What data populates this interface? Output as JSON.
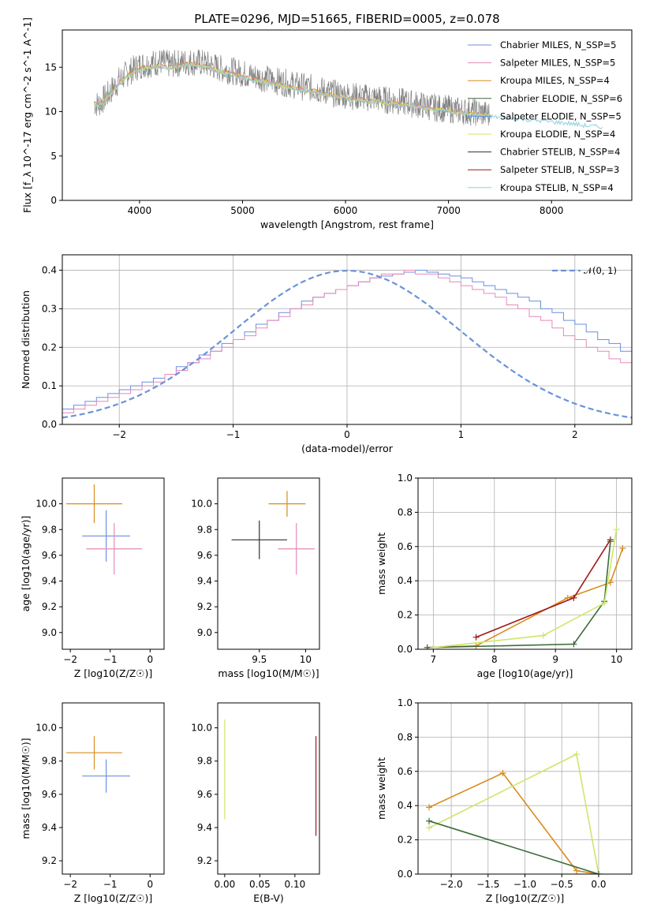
{
  "figure_title": "PLATE=0296, MJD=51665, FIBERID=0005, z=0.078",
  "colors": {
    "Chabrier MILES": "#6b8fe0",
    "Salpeter MILES": "#e58ab8",
    "Kroupa MILES": "#d98c1e",
    "Chabrier ELODIE": "#3b6b3b",
    "Salpeter ELODIE": "#5b8fe8",
    "Kroupa ELODIE": "#cfe66a",
    "Chabrier STELIB": "#303030",
    "Salpeter STELIB": "#a01818",
    "Kroupa STELIB": "#8fd0e0",
    "data": "#808080",
    "normal": "#6a93d8",
    "histogram_extra": [
      "#8b2ab0",
      "#e0703a",
      "#c0c040",
      "#7090e8"
    ]
  },
  "chart_data": [
    {
      "type": "line",
      "title": "PLATE=0296, MJD=51665, FIBERID=0005, z=0.078",
      "xlabel": "wavelength [Angstrom, rest frame]",
      "ylabel": "Flux [f_λ 10^-17 erg cm^-2 s^-1 A^-1]",
      "xlim": [
        3250,
        8780
      ],
      "ylim": [
        0,
        19.2
      ],
      "xticks": [
        4000,
        5000,
        6000,
        7000,
        8000
      ],
      "yticks": [
        0,
        5,
        10,
        15
      ],
      "grid": false,
      "legend_position": "top-right",
      "legend": [
        {
          "name": "Chabrier MILES",
          "nssp": "N_SSP=5"
        },
        {
          "name": "Salpeter MILES",
          "nssp": "N_SSP=5"
        },
        {
          "name": "Kroupa MILES",
          "nssp": "N_SSP=4"
        },
        {
          "name": "Chabrier ELODIE",
          "nssp": "N_SSP=6"
        },
        {
          "name": "Salpeter ELODIE",
          "nssp": "N_SSP=5"
        },
        {
          "name": "Kroupa ELODIE",
          "nssp": "N_SSP=4"
        },
        {
          "name": "Chabrier STELIB",
          "nssp": "N_SSP=4"
        },
        {
          "name": "Salpeter STELIB",
          "nssp": "N_SSP=3"
        },
        {
          "name": "Kroupa STELIB",
          "nssp": "N_SSP=4"
        }
      ],
      "series": [
        {
          "name": "data",
          "x": [
            3560,
            3600,
            3700,
            3800,
            3900,
            4000,
            4100,
            4200,
            4300,
            4400,
            4500,
            4600,
            4700,
            4800,
            4900,
            5000,
            5100,
            5200,
            5300,
            5400,
            5500,
            5600,
            5700,
            5800,
            5900,
            6000,
            6100,
            6200,
            6300,
            6400,
            6500,
            6600,
            6700,
            6800,
            6900,
            7000,
            7100,
            7200,
            7300,
            7400
          ],
          "y": [
            11.0,
            10.8,
            12.0,
            13.5,
            14.5,
            15.2,
            15.4,
            15.6,
            15.3,
            15.5,
            15.6,
            15.5,
            15.2,
            14.8,
            14.6,
            14.3,
            14.0,
            13.8,
            13.5,
            13.3,
            13.0,
            12.8,
            12.6,
            12.3,
            12.0,
            11.9,
            11.7,
            11.6,
            11.5,
            11.3,
            11.2,
            11.0,
            10.8,
            10.6,
            10.4,
            10.3,
            10.1,
            10.0,
            9.9,
            9.6
          ]
        },
        {
          "name": "model",
          "x": [
            3560,
            3600,
            3700,
            3800,
            3900,
            4000,
            4100,
            4200,
            4300,
            4400,
            4500,
            4600,
            4700,
            4800,
            4900,
            5000,
            5100,
            5200,
            5300,
            5400,
            5500,
            5600,
            5700,
            5800,
            5900,
            6000,
            6100,
            6200,
            6300,
            6400,
            6500,
            6600,
            6700,
            6800,
            6900,
            7000,
            7100,
            7200,
            7300,
            7400,
            7500,
            7600,
            7700,
            7800,
            7900,
            8000,
            8100,
            8200,
            8300,
            8400,
            8500
          ],
          "y": [
            11.0,
            10.6,
            11.8,
            13.2,
            14.2,
            14.9,
            15.0,
            15.2,
            15.0,
            15.3,
            15.4,
            15.2,
            14.9,
            14.5,
            14.3,
            14.0,
            13.7,
            13.5,
            13.2,
            13.0,
            12.7,
            12.5,
            12.3,
            12.0,
            11.8,
            11.6,
            11.4,
            11.3,
            11.2,
            11.0,
            10.9,
            10.8,
            10.6,
            10.4,
            10.3,
            10.1,
            10.0,
            9.8,
            9.7,
            9.6,
            9.5,
            9.4,
            9.3,
            9.2,
            9.1,
            9.0,
            8.9,
            8.8,
            8.6,
            8.5,
            8.4
          ]
        }
      ]
    },
    {
      "type": "histogram",
      "xlabel": "(data-model)/error",
      "ylabel": "Normed distribution",
      "xlim": [
        -2.5,
        2.5
      ],
      "ylim": [
        0,
        0.44
      ],
      "xticks": [
        -2,
        -1,
        0,
        1,
        2
      ],
      "yticks": [
        0.0,
        0.1,
        0.2,
        0.3,
        0.4
      ],
      "grid": true,
      "legend_position": "top-right",
      "legend": [
        "𝒩(0, 1)"
      ],
      "bin_width": 0.1,
      "bin_start": -2.5,
      "series": [
        {
          "name": "Chabrier MILES",
          "values": [
            0.04,
            0.05,
            0.06,
            0.07,
            0.08,
            0.09,
            0.1,
            0.11,
            0.12,
            0.13,
            0.15,
            0.16,
            0.18,
            0.19,
            0.21,
            0.22,
            0.24,
            0.26,
            0.27,
            0.29,
            0.3,
            0.32,
            0.33,
            0.34,
            0.35,
            0.36,
            0.37,
            0.38,
            0.385,
            0.39,
            0.395,
            0.4,
            0.395,
            0.39,
            0.385,
            0.38,
            0.37,
            0.36,
            0.35,
            0.34,
            0.33,
            0.32,
            0.3,
            0.29,
            0.27,
            0.26,
            0.24,
            0.22,
            0.21,
            0.19
          ]
        },
        {
          "name": "Salpeter MILES",
          "values": [
            0.03,
            0.04,
            0.05,
            0.06,
            0.07,
            0.08,
            0.09,
            0.1,
            0.11,
            0.13,
            0.14,
            0.16,
            0.17,
            0.19,
            0.2,
            0.22,
            0.23,
            0.25,
            0.27,
            0.28,
            0.3,
            0.31,
            0.33,
            0.34,
            0.35,
            0.36,
            0.37,
            0.38,
            0.39,
            0.39,
            0.4,
            0.39,
            0.39,
            0.38,
            0.37,
            0.36,
            0.35,
            0.34,
            0.33,
            0.31,
            0.3,
            0.28,
            0.27,
            0.25,
            0.23,
            0.22,
            0.2,
            0.19,
            0.17,
            0.16
          ]
        }
      ],
      "overlay": {
        "name": "𝒩(0, 1)",
        "mean": 0,
        "sigma": 1,
        "style": "dashed"
      }
    },
    {
      "type": "scatter",
      "xlabel": "Z [log10(Z/Z☉)]",
      "ylabel": "age [log10(age/yr)]",
      "xlim": [
        -2.2,
        0.35
      ],
      "ylim": [
        8.87,
        10.2
      ],
      "xticks": [
        -2,
        -1,
        0
      ],
      "yticks": [
        9.0,
        9.2,
        9.4,
        9.6,
        9.8,
        10.0
      ],
      "points": [
        {
          "name": "Kroupa MILES",
          "x": -1.4,
          "y": 10.0,
          "xerr": 0.7,
          "yerr": 0.15
        },
        {
          "name": "Chabrier MILES",
          "x": -1.1,
          "y": 9.75,
          "xerr": 0.6,
          "yerr": 0.2
        },
        {
          "name": "Salpeter MILES",
          "x": -0.9,
          "y": 9.65,
          "xerr": 0.7,
          "yerr": 0.2
        }
      ]
    },
    {
      "type": "scatter",
      "xlabel": "mass [log10(M/M☉)]",
      "ylabel": "",
      "xlim": [
        9.05,
        10.15
      ],
      "ylim": [
        8.87,
        10.2
      ],
      "xticks": [
        9.5,
        10.0
      ],
      "yticks": [
        9.0,
        9.2,
        9.4,
        9.6,
        9.8,
        10.0
      ],
      "points": [
        {
          "name": "Kroupa MILES",
          "x": 9.8,
          "y": 10.0,
          "xerr": 0.2,
          "yerr": 0.1
        },
        {
          "name": "Chabrier STELIB",
          "x": 9.5,
          "y": 9.72,
          "xerr": 0.3,
          "yerr": 0.15
        },
        {
          "name": "Salpeter MILES",
          "x": 9.9,
          "y": 9.65,
          "xerr": 0.2,
          "yerr": 0.2
        }
      ]
    },
    {
      "type": "line",
      "xlabel": "age [log10(age/yr)]",
      "ylabel": "mass weight",
      "xlim": [
        6.75,
        10.25
      ],
      "ylim": [
        0,
        1.0
      ],
      "xticks": [
        7,
        8,
        9,
        10
      ],
      "yticks": [
        0.0,
        0.2,
        0.4,
        0.6,
        0.8,
        1.0
      ],
      "grid": true,
      "series": [
        {
          "name": "Kroupa MILES",
          "x": [
            6.9,
            7.7,
            9.2,
            9.9,
            10.1
          ],
          "y": [
            0.01,
            0.02,
            0.3,
            0.39,
            0.59
          ]
        },
        {
          "name": "Salpeter STELIB",
          "x": [
            7.7,
            9.3,
            9.9
          ],
          "y": [
            0.07,
            0.3,
            0.64
          ]
        },
        {
          "name": "Chabrier ELODIE",
          "x": [
            6.9,
            9.3,
            9.8,
            9.9
          ],
          "y": [
            0.01,
            0.03,
            0.28,
            0.63
          ]
        },
        {
          "name": "Kroupa ELODIE",
          "x": [
            7.0,
            8.8,
            9.8,
            10.0
          ],
          "y": [
            0.01,
            0.08,
            0.27,
            0.7
          ]
        }
      ]
    },
    {
      "type": "scatter",
      "xlabel": "Z [log10(Z/Z☉)]",
      "ylabel": "mass [log10(M/M☉)]",
      "xlim": [
        -2.2,
        0.35
      ],
      "ylim": [
        9.12,
        10.15
      ],
      "xticks": [
        -2,
        -1,
        0
      ],
      "yticks": [
        9.2,
        9.4,
        9.6,
        9.8,
        10.0
      ],
      "points": [
        {
          "name": "Kroupa MILES",
          "x": -1.4,
          "y": 9.85,
          "xerr": 0.7,
          "yerr": 0.1
        },
        {
          "name": "Chabrier MILES",
          "x": -1.1,
          "y": 9.71,
          "xerr": 0.6,
          "yerr": 0.1
        }
      ]
    },
    {
      "type": "scatter",
      "xlabel": "E(B-V)",
      "ylabel": "",
      "xlim": [
        -0.01,
        0.135
      ],
      "ylim": [
        9.12,
        10.15
      ],
      "xticks": [
        0.0,
        0.05,
        0.1
      ],
      "tick_labels": [
        "0.00",
        "0.05",
        "0.10"
      ],
      "yticks": [
        9.2,
        9.4,
        9.6,
        9.8,
        10.0
      ],
      "points": [
        {
          "name": "Kroupa ELODIE",
          "x": 0.0,
          "y": 9.75,
          "yerr": 0.3
        },
        {
          "name": "Salpeter STELIB",
          "x": 0.13,
          "y": 9.65,
          "yerr": 0.3
        }
      ]
    },
    {
      "type": "line",
      "xlabel": "Z [log10(Z/Z☉)]",
      "ylabel": "mass weight",
      "xlim": [
        -2.45,
        0.45
      ],
      "ylim": [
        0,
        1.0
      ],
      "xticks": [
        -2.0,
        -1.5,
        -1.0,
        -0.5,
        0.0
      ],
      "tick_labels": [
        "−2.0",
        "−1.5",
        "−1.0",
        "−0.5",
        "0.0"
      ],
      "yticks": [
        0.0,
        0.2,
        0.4,
        0.6,
        0.8,
        1.0
      ],
      "grid": true,
      "series": [
        {
          "name": "Kroupa MILES",
          "x": [
            -2.3,
            -1.3,
            -0.3,
            0.0
          ],
          "y": [
            0.39,
            0.59,
            0.02,
            0.0
          ]
        },
        {
          "name": "Kroupa ELODIE",
          "x": [
            -2.3,
            -0.3,
            0.0
          ],
          "y": [
            0.27,
            0.7,
            0.0
          ]
        },
        {
          "name": "Chabrier ELODIE",
          "x": [
            -2.3,
            0.0
          ],
          "y": [
            0.31,
            0.0
          ]
        }
      ]
    }
  ]
}
